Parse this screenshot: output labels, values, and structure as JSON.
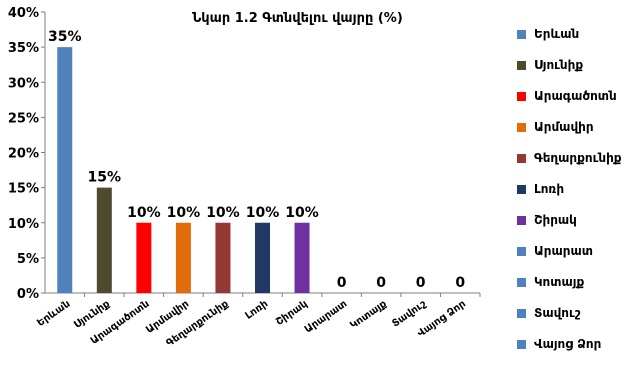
{
  "chart_data": {
    "type": "bar",
    "title": "Նկար 1.2 Գտնվելու վայրը (%)",
    "xlabel": "",
    "ylabel": "",
    "ylim": [
      0,
      40
    ],
    "yticks": [
      "0%",
      "5%",
      "10%",
      "15%",
      "20%",
      "25%",
      "30%",
      "35%",
      "40%"
    ],
    "categories": [
      "Երևան",
      "Սյունիք",
      "Արագածոտն",
      "Արմավիր",
      "Գեղարքունիք",
      "Լոռի",
      "Շիրակ",
      "Արարատ",
      "Կոտայք",
      "Տավուշ",
      "Վայոց Ձոր"
    ],
    "values": [
      35,
      15,
      10,
      10,
      10,
      10,
      10,
      0,
      0,
      0,
      0
    ],
    "data_labels": [
      "35%",
      "15%",
      "10%",
      "10%",
      "10%",
      "10%",
      "10%",
      "0",
      "0",
      "0",
      "0"
    ],
    "colors": [
      "#4f81bd",
      "#4f4a2e",
      "#ff0000",
      "#e36c0a",
      "#953735",
      "#1f3864",
      "#7030a0",
      "#4f81bd",
      "#4f81bd",
      "#4f81bd",
      "#4f81bd"
    ],
    "legend_position": "right",
    "grid": false
  }
}
